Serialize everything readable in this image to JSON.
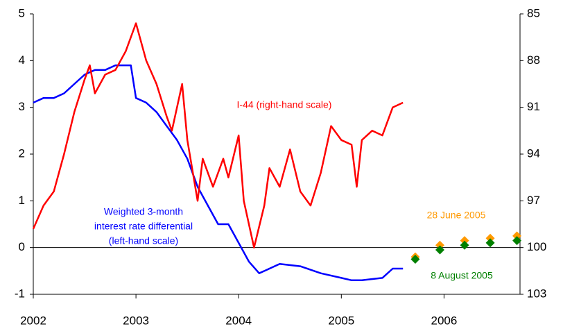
{
  "chart_data": {
    "type": "line",
    "xlim": [
      2002,
      2006.74
    ],
    "xticks": [
      2002,
      2003,
      2004,
      2005,
      2006
    ],
    "ylim": [
      -1,
      5
    ],
    "yticks": [
      -1,
      0,
      1,
      2,
      3,
      4,
      5
    ],
    "y2lim": [
      103,
      85
    ],
    "y2ticks": [
      85,
      88,
      91,
      94,
      97,
      100,
      103
    ],
    "zero_line": true,
    "series": [
      {
        "label_lines": [
          "Weighted 3-month",
          "interest rate differential",
          "(left-hand scale)"
        ],
        "color": "#0000ff",
        "kind": "line",
        "axis": "y",
        "x": [
          2002.0,
          2002.1,
          2002.2,
          2002.3,
          2002.4,
          2002.5,
          2002.6,
          2002.7,
          2002.8,
          2002.9,
          2002.95,
          2003.0,
          2003.1,
          2003.2,
          2003.3,
          2003.4,
          2003.5,
          2003.6,
          2003.7,
          2003.8,
          2003.9,
          2004.0,
          2004.1,
          2004.2,
          2004.3,
          2004.4,
          2004.6,
          2004.8,
          2005.0,
          2005.1,
          2005.2,
          2005.4,
          2005.5,
          2005.6
        ],
        "values": [
          3.1,
          3.2,
          3.2,
          3.3,
          3.5,
          3.7,
          3.8,
          3.8,
          3.9,
          3.9,
          3.9,
          3.2,
          3.1,
          2.9,
          2.6,
          2.3,
          1.9,
          1.3,
          0.9,
          0.5,
          0.5,
          0.1,
          -0.3,
          -0.55,
          -0.45,
          -0.35,
          -0.4,
          -0.55,
          -0.65,
          -0.7,
          -0.7,
          -0.65,
          -0.45,
          -0.45
        ]
      },
      {
        "name": "I-44 (right-hand scale)",
        "color": "#ff0000",
        "kind": "line",
        "axis": "y2",
        "x": [
          2002.0,
          2002.1,
          2002.2,
          2002.3,
          2002.4,
          2002.5,
          2002.55,
          2002.6,
          2002.7,
          2002.8,
          2002.9,
          2003.0,
          2003.1,
          2003.2,
          2003.3,
          2003.35,
          2003.45,
          2003.5,
          2003.6,
          2003.65,
          2003.75,
          2003.85,
          2003.9,
          2004.0,
          2004.05,
          2004.15,
          2004.25,
          2004.3,
          2004.4,
          2004.5,
          2004.6,
          2004.7,
          2004.8,
          2004.9,
          2005.0,
          2005.1,
          2005.15,
          2005.2,
          2005.3,
          2005.4,
          2005.5,
          2005.6
        ],
        "values": [
          98.8,
          97.3,
          96.4,
          94,
          91.3,
          89.2,
          88.3,
          90.1,
          88.9,
          88.6,
          87.4,
          85.6,
          88,
          89.5,
          91.6,
          92.5,
          89.5,
          93.1,
          97,
          94.3,
          96.1,
          94.3,
          95.5,
          92.8,
          97,
          100,
          97.3,
          94.9,
          96.1,
          93.7,
          96.4,
          97.3,
          95.2,
          92.2,
          93.1,
          93.4,
          96.1,
          93.1,
          92.5,
          92.8,
          91,
          90.7
        ]
      },
      {
        "name": "28 June 2005",
        "color": "#ff9900",
        "kind": "diamond",
        "axis": "y",
        "x": [
          2005.72,
          2005.96,
          2006.2,
          2006.45,
          2006.71
        ],
        "values": [
          -0.2,
          0.05,
          0.15,
          0.2,
          0.25
        ]
      },
      {
        "name": "8 August 2005",
        "color": "#008000",
        "kind": "diamond",
        "axis": "y",
        "x": [
          2005.72,
          2005.96,
          2006.2,
          2006.45,
          2006.71
        ],
        "values": [
          -0.25,
          -0.05,
          0.05,
          0.1,
          0.15
        ]
      }
    ]
  }
}
